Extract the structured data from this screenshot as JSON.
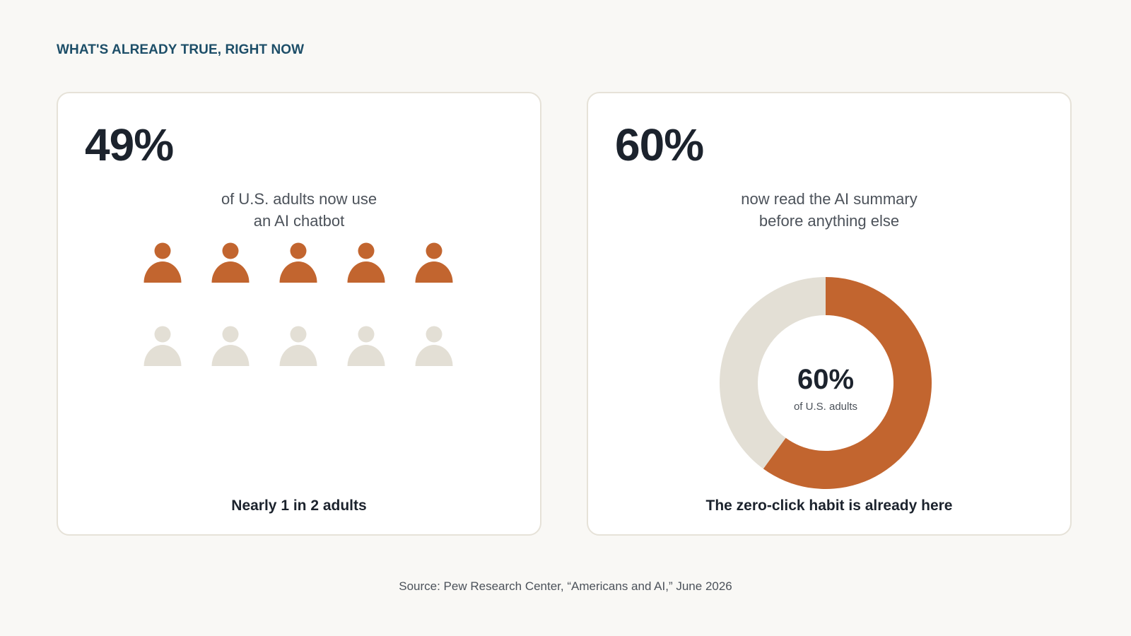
{
  "header": {
    "eyebrow": "WHAT'S ALREADY TRUE, RIGHT NOW"
  },
  "colors": {
    "accent": "#c2652f",
    "muted": "#e3dfd5",
    "text_dark": "#1c232d",
    "text_muted": "#4c525a",
    "eyebrow": "#1d4e68"
  },
  "cards": [
    {
      "stat": "49%",
      "caption_line1": "of U.S. adults now use",
      "caption_line2": "an AI chatbot",
      "takeaway": "Nearly 1 in 2 adults"
    },
    {
      "stat": "60%",
      "caption_line1": "now read the AI summary",
      "caption_line2": "before anything else",
      "takeaway": "The zero-click habit is already here"
    }
  ],
  "chart_data": [
    {
      "type": "pictogram",
      "icon": "person-icon",
      "total": 10,
      "filled": 5,
      "columns": 5,
      "rows": 2
    },
    {
      "type": "pie",
      "style": "donut",
      "values": [
        60,
        40
      ],
      "center_value": "60%",
      "center_label": "of U.S. adults"
    }
  ],
  "footer": {
    "source": "Source: Pew Research Center, “Americans and AI,” June 2026"
  }
}
